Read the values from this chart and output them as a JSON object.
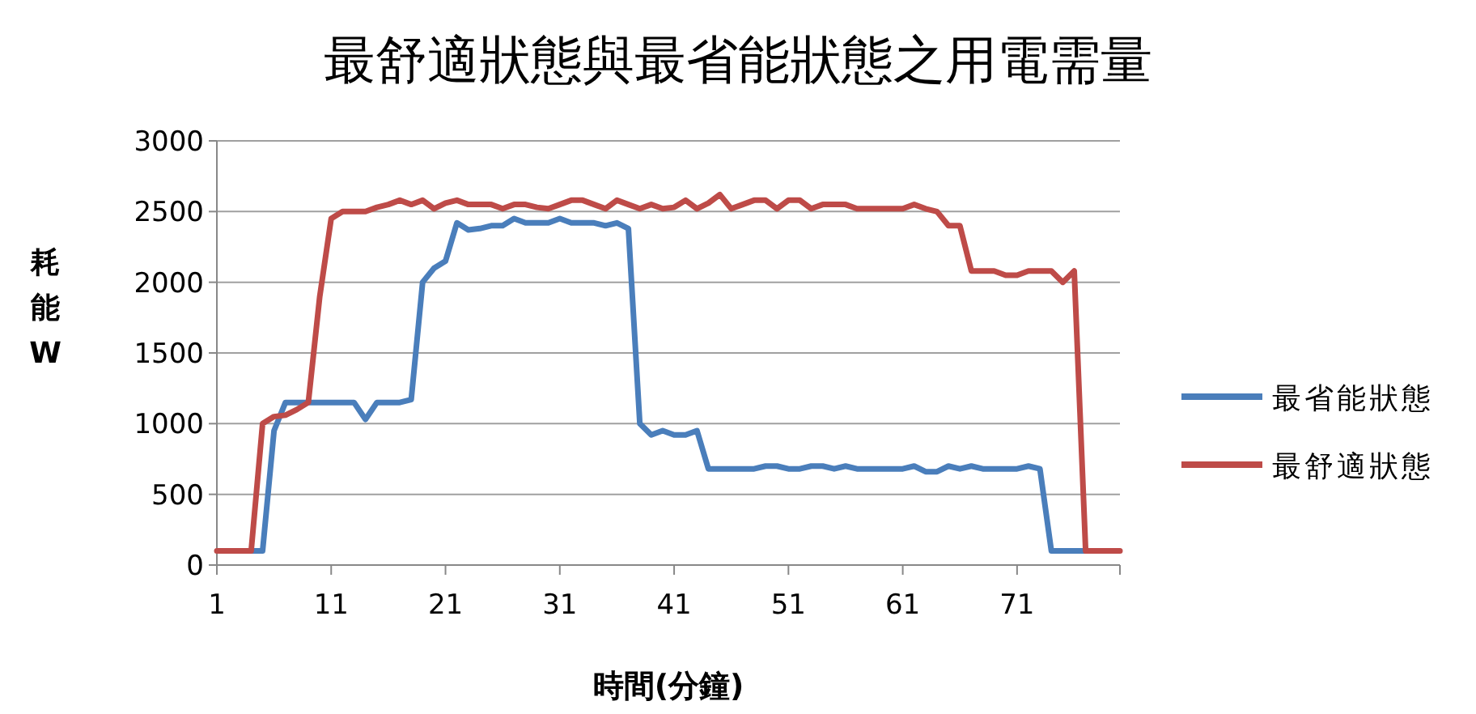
{
  "chart_data": {
    "type": "line",
    "title": "最舒適狀態與最省能狀態之用電需量",
    "xlabel": "時間(分鐘)",
    "ylabel": "耗能W",
    "x": [
      1,
      2,
      3,
      4,
      5,
      6,
      7,
      8,
      9,
      10,
      11,
      12,
      13,
      14,
      15,
      16,
      17,
      18,
      19,
      20,
      21,
      22,
      23,
      24,
      25,
      26,
      27,
      28,
      29,
      30,
      31,
      32,
      33,
      34,
      35,
      36,
      37,
      38,
      39,
      40,
      41,
      42,
      43,
      44,
      45,
      46,
      47,
      48,
      49,
      50,
      51,
      52,
      53,
      54,
      55,
      56,
      57,
      58,
      59,
      60,
      61,
      62,
      63,
      64,
      65,
      66,
      67,
      68,
      69,
      70,
      71,
      72,
      73,
      74,
      75,
      76,
      77,
      78,
      79,
      80
    ],
    "series": [
      {
        "name": "最省能狀態",
        "color": "#4a7ebb",
        "values": [
          null,
          null,
          null,
          100,
          100,
          950,
          1150,
          1150,
          1150,
          1150,
          1150,
          1150,
          1150,
          1030,
          1150,
          1150,
          1150,
          1170,
          2000,
          2100,
          2150,
          2420,
          2370,
          2380,
          2400,
          2400,
          2450,
          2420,
          2420,
          2420,
          2450,
          2420,
          2420,
          2420,
          2400,
          2420,
          2380,
          1000,
          920,
          950,
          920,
          920,
          950,
          680,
          680,
          680,
          680,
          680,
          700,
          700,
          680,
          680,
          700,
          700,
          680,
          700,
          680,
          680,
          680,
          680,
          680,
          700,
          660,
          660,
          700,
          680,
          700,
          680,
          680,
          680,
          680,
          700,
          680,
          100,
          100,
          100,
          100,
          null,
          null,
          null
        ]
      },
      {
        "name": "最舒適狀態",
        "color": "#be4b48",
        "values": [
          100,
          100,
          100,
          100,
          1000,
          1050,
          1060,
          1100,
          1150,
          1900,
          2450,
          2500,
          2500,
          2500,
          2530,
          2550,
          2580,
          2550,
          2580,
          2520,
          2560,
          2580,
          2550,
          2550,
          2550,
          2520,
          2550,
          2550,
          2530,
          2520,
          2550,
          2580,
          2580,
          2550,
          2520,
          2580,
          2550,
          2520,
          2550,
          2520,
          2530,
          2580,
          2520,
          2560,
          2620,
          2520,
          2550,
          2580,
          2580,
          2520,
          2580,
          2580,
          2520,
          2550,
          2550,
          2550,
          2520,
          2520,
          2520,
          2520,
          2520,
          2550,
          2520,
          2500,
          2400,
          2400,
          2080,
          2080,
          2080,
          2050,
          2050,
          2080,
          2080,
          2080,
          2000,
          2080,
          100,
          100,
          100,
          100
        ]
      }
    ],
    "xlim": [
      1,
      80
    ],
    "xticks": [
      1,
      11,
      21,
      31,
      41,
      51,
      61,
      71
    ],
    "ylim": [
      0,
      3000
    ],
    "yticks": [
      0,
      500,
      1000,
      1500,
      2000,
      2500,
      3000
    ],
    "grid": "y",
    "legend": "right",
    "marker": "none",
    "line_style": "solid"
  }
}
